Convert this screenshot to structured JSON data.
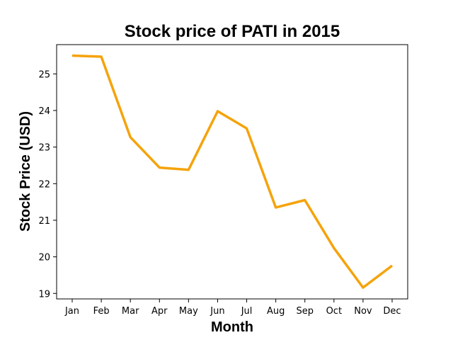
{
  "chart_data": {
    "type": "line",
    "title": "Stock price of PATI in 2015",
    "xlabel": "Month",
    "ylabel": "Stock Price (USD)",
    "categories": [
      "Jan",
      "Feb",
      "Mar",
      "Apr",
      "May",
      "Jun",
      "Jul",
      "Aug",
      "Sep",
      "Oct",
      "Nov",
      "Dec"
    ],
    "series": [
      {
        "values": [
          25.5,
          25.47,
          23.27,
          22.44,
          22.38,
          23.98,
          23.51,
          21.35,
          21.55,
          20.24,
          19.16,
          19.76
        ],
        "color": "#f5a30a"
      }
    ],
    "yticks": [
      19,
      20,
      21,
      22,
      23,
      24,
      25
    ],
    "ylim": [
      18.85,
      25.8
    ],
    "grid": false,
    "legend": "none"
  }
}
